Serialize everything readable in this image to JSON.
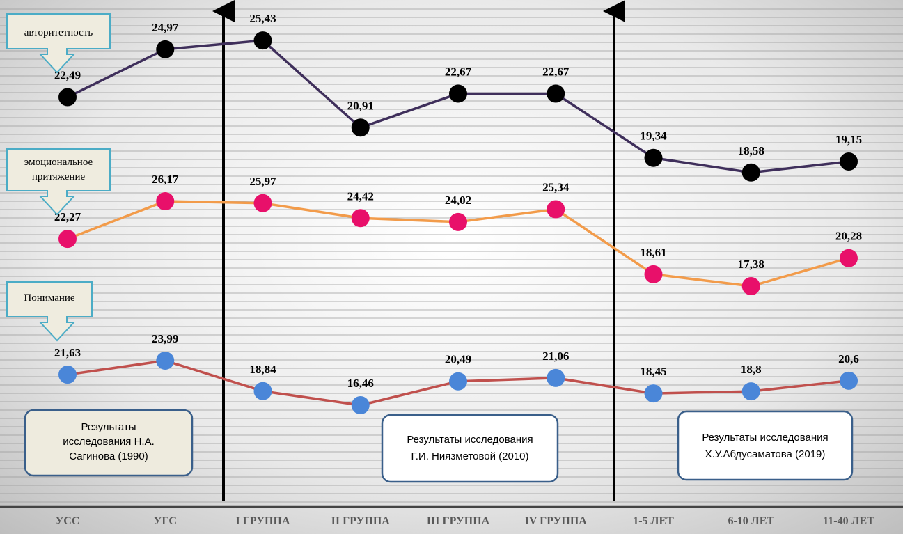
{
  "chart_data": {
    "type": "line",
    "title": "",
    "xlabel": "",
    "ylabel": "",
    "grid": true,
    "categories": [
      "УСС",
      "УГС",
      "I ГРУППА",
      "II ГРУППА",
      "III ГРУППА",
      "IV ГРУППА",
      "1-5 ЛЕТ",
      "6-10 ЛЕТ",
      "11-40 ЛЕТ"
    ],
    "series": [
      {
        "name": "авторитетность",
        "values": [
          22.49,
          24.97,
          25.43,
          20.91,
          22.67,
          22.67,
          19.34,
          18.58,
          19.15
        ],
        "labels": [
          "22,49",
          "24,97",
          "25,43",
          "20,91",
          "22,67",
          "22,67",
          "19,34",
          "18,58",
          "19,15"
        ],
        "line_color": "#3f2f5b",
        "marker_color": "#000000"
      },
      {
        "name": "эмоциональное притяжение",
        "values": [
          22.27,
          26.17,
          25.97,
          24.42,
          24.02,
          25.34,
          18.61,
          17.38,
          20.28
        ],
        "labels": [
          "22,27",
          "26,17",
          "25,97",
          "24,42",
          "24,02",
          "25,34",
          "18,61",
          "17,38",
          "20,28"
        ],
        "line_color": "#f29b4a",
        "marker_color": "#e8106a"
      },
      {
        "name": "Понимание",
        "values": [
          21.63,
          23.99,
          18.84,
          16.46,
          20.49,
          21.06,
          18.45,
          18.8,
          20.6
        ],
        "labels": [
          "21,63",
          "23,99",
          "18,84",
          "16,46",
          "20,49",
          "21,06",
          "18,45",
          "18,8",
          "20,6"
        ],
        "line_color": "#c0504d",
        "marker_color": "#4a86d8"
      }
    ],
    "callouts": [
      "авторитетность",
      "эмоциональное притяжение",
      "Понимание"
    ],
    "study_boxes": [
      {
        "lines": [
          "Результаты",
          "исследования Н.А.",
          "Сагинова (1990)"
        ]
      },
      {
        "lines": [
          "Результаты исследования",
          "Г.И. Ниязметовой (2010)"
        ]
      },
      {
        "lines": [
          "Результаты исследования",
          "Х.У.Абдусаматова (2019)"
        ]
      }
    ],
    "dividers_after": [
      "УГС",
      "IV ГРУППА"
    ]
  },
  "colors": {
    "grid": "#9a9a9a",
    "axis": "#444444",
    "callout_fill": "#efecdf",
    "callout_stroke": "#4bacc6",
    "box_stroke": "#3a5f8a"
  }
}
